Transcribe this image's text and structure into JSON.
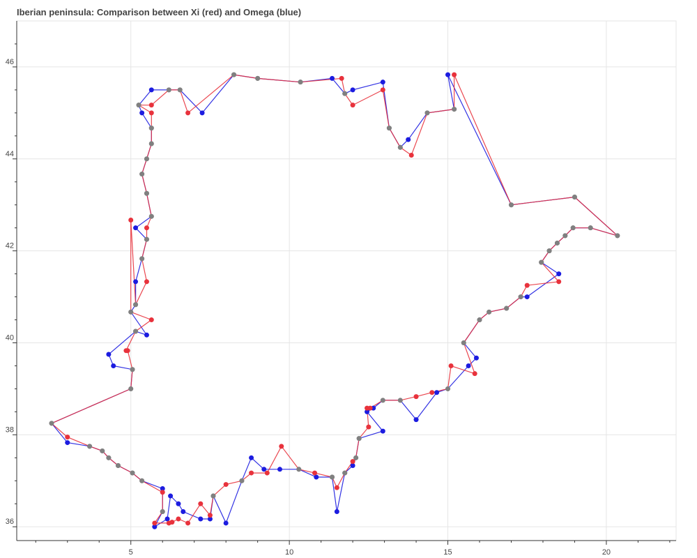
{
  "chart_data": {
    "type": "line",
    "title": "Iberian peninsula: Comparison between Xi (red) and Omega (blue)",
    "xlabel": "",
    "ylabel": "",
    "xlim": [
      1.4,
      22.2
    ],
    "ylim": [
      35.7,
      47.0
    ],
    "grid": true,
    "x_ticks": [
      5,
      10,
      15,
      20
    ],
    "y_ticks": [
      36,
      38,
      40,
      42,
      44,
      46
    ],
    "series": [
      {
        "color": "#e8323c",
        "points": [
          [
            2.5,
            38.25
          ],
          [
            3.0,
            37.95
          ],
          [
            3.7,
            37.75
          ],
          [
            4.1,
            37.65
          ],
          [
            4.3,
            37.5
          ],
          [
            4.6,
            37.33
          ],
          [
            5.05,
            37.17
          ],
          [
            5.35,
            37.0
          ],
          [
            6.0,
            36.75
          ],
          [
            6.0,
            36.33
          ],
          [
            5.75,
            36.08
          ],
          [
            6.2,
            36.08
          ],
          [
            6.3,
            36.1
          ],
          [
            6.5,
            36.17
          ],
          [
            6.8,
            36.08
          ],
          [
            7.2,
            36.5
          ],
          [
            7.5,
            36.25
          ],
          [
            7.6,
            36.67
          ],
          [
            8.0,
            36.92
          ],
          [
            8.5,
            37.0
          ],
          [
            8.8,
            37.17
          ],
          [
            9.3,
            37.17
          ],
          [
            9.75,
            37.75
          ],
          [
            10.3,
            37.25
          ],
          [
            10.8,
            37.17
          ],
          [
            11.35,
            37.08
          ],
          [
            11.5,
            36.85
          ],
          [
            11.75,
            37.17
          ],
          [
            12.0,
            37.42
          ],
          [
            12.1,
            37.5
          ],
          [
            12.2,
            37.92
          ],
          [
            12.5,
            38.17
          ],
          [
            12.45,
            38.58
          ],
          [
            12.55,
            38.58
          ],
          [
            12.95,
            38.75
          ],
          [
            13.5,
            38.75
          ],
          [
            14.0,
            38.83
          ],
          [
            14.5,
            38.92
          ],
          [
            15.0,
            39.0
          ],
          [
            15.1,
            39.5
          ],
          [
            15.85,
            39.33
          ],
          [
            15.5,
            40.0
          ],
          [
            16.0,
            40.5
          ],
          [
            16.3,
            40.67
          ],
          [
            16.85,
            40.75
          ],
          [
            17.3,
            41.0
          ],
          [
            17.5,
            41.25
          ],
          [
            18.5,
            41.33
          ],
          [
            17.95,
            41.75
          ],
          [
            18.2,
            42.0
          ],
          [
            18.45,
            42.17
          ],
          [
            18.7,
            42.33
          ],
          [
            18.95,
            42.5
          ],
          [
            19.5,
            42.5
          ],
          [
            20.35,
            42.33
          ],
          [
            19.0,
            43.17
          ],
          [
            17.0,
            43.0
          ],
          [
            15.2,
            45.83
          ],
          [
            15.2,
            45.08
          ],
          [
            14.35,
            45.0
          ],
          [
            13.85,
            44.08
          ],
          [
            13.5,
            44.25
          ],
          [
            13.15,
            44.67
          ],
          [
            12.95,
            45.5
          ],
          [
            12.0,
            45.17
          ],
          [
            11.75,
            45.42
          ],
          [
            11.65,
            45.75
          ],
          [
            10.35,
            45.67
          ],
          [
            9.0,
            45.75
          ],
          [
            8.25,
            45.83
          ],
          [
            6.8,
            45.0
          ],
          [
            6.55,
            45.5
          ],
          [
            6.2,
            45.5
          ],
          [
            5.65,
            45.17
          ],
          [
            5.25,
            45.17
          ],
          [
            5.65,
            45.0
          ],
          [
            5.65,
            44.67
          ],
          [
            5.65,
            44.33
          ],
          [
            5.5,
            44.0
          ],
          [
            5.35,
            43.67
          ],
          [
            5.5,
            43.25
          ],
          [
            5.65,
            42.75
          ],
          [
            5.5,
            42.5
          ],
          [
            5.5,
            42.25
          ],
          [
            5.35,
            41.83
          ],
          [
            5.5,
            41.33
          ],
          [
            5.15,
            40.83
          ],
          [
            5.0,
            42.67
          ],
          [
            5.0,
            40.67
          ],
          [
            5.65,
            40.5
          ],
          [
            5.15,
            40.25
          ],
          [
            4.85,
            39.83
          ],
          [
            4.9,
            39.83
          ],
          [
            5.05,
            39.42
          ],
          [
            5.0,
            39.0
          ],
          [
            2.5,
            38.25
          ]
        ]
      },
      {
        "color": "#1c1ce0",
        "points": [
          [
            2.5,
            38.25
          ],
          [
            3.0,
            37.83
          ],
          [
            3.7,
            37.75
          ],
          [
            4.1,
            37.65
          ],
          [
            4.3,
            37.5
          ],
          [
            4.6,
            37.33
          ],
          [
            5.05,
            37.17
          ],
          [
            5.35,
            37.0
          ],
          [
            6.0,
            36.83
          ],
          [
            6.0,
            36.33
          ],
          [
            5.75,
            36.0
          ],
          [
            6.15,
            36.17
          ],
          [
            6.25,
            36.67
          ],
          [
            6.5,
            36.5
          ],
          [
            6.65,
            36.33
          ],
          [
            7.2,
            36.17
          ],
          [
            7.5,
            36.17
          ],
          [
            7.6,
            36.67
          ],
          [
            8.0,
            36.08
          ],
          [
            8.5,
            37.0
          ],
          [
            8.8,
            37.5
          ],
          [
            9.2,
            37.25
          ],
          [
            9.7,
            37.25
          ],
          [
            10.3,
            37.25
          ],
          [
            10.85,
            37.08
          ],
          [
            11.35,
            37.08
          ],
          [
            11.5,
            36.33
          ],
          [
            11.75,
            37.17
          ],
          [
            12.0,
            37.33
          ],
          [
            12.1,
            37.5
          ],
          [
            12.2,
            37.92
          ],
          [
            12.95,
            38.08
          ],
          [
            12.45,
            38.5
          ],
          [
            12.65,
            38.58
          ],
          [
            12.95,
            38.75
          ],
          [
            13.5,
            38.75
          ],
          [
            14.0,
            38.33
          ],
          [
            14.65,
            38.92
          ],
          [
            15.0,
            39.0
          ],
          [
            15.65,
            39.5
          ],
          [
            15.9,
            39.67
          ],
          [
            15.5,
            40.0
          ],
          [
            16.0,
            40.5
          ],
          [
            16.3,
            40.67
          ],
          [
            16.85,
            40.75
          ],
          [
            17.3,
            41.0
          ],
          [
            17.5,
            41.0
          ],
          [
            18.5,
            41.5
          ],
          [
            17.95,
            41.75
          ],
          [
            18.2,
            42.0
          ],
          [
            18.45,
            42.17
          ],
          [
            18.7,
            42.33
          ],
          [
            18.95,
            42.5
          ],
          [
            19.5,
            42.5
          ],
          [
            20.35,
            42.33
          ],
          [
            19.0,
            43.17
          ],
          [
            17.0,
            43.0
          ],
          [
            15.0,
            45.83
          ],
          [
            15.2,
            45.08
          ],
          [
            14.35,
            45.0
          ],
          [
            13.75,
            44.42
          ],
          [
            13.5,
            44.25
          ],
          [
            13.15,
            44.67
          ],
          [
            12.95,
            45.67
          ],
          [
            12.0,
            45.5
          ],
          [
            11.75,
            45.42
          ],
          [
            11.35,
            45.75
          ],
          [
            10.35,
            45.67
          ],
          [
            9.0,
            45.75
          ],
          [
            8.25,
            45.83
          ],
          [
            7.25,
            45.0
          ],
          [
            6.55,
            45.5
          ],
          [
            6.2,
            45.5
          ],
          [
            5.65,
            45.5
          ],
          [
            5.25,
            45.17
          ],
          [
            5.35,
            45.0
          ],
          [
            5.65,
            44.67
          ],
          [
            5.65,
            44.33
          ],
          [
            5.5,
            44.0
          ],
          [
            5.35,
            43.67
          ],
          [
            5.5,
            43.25
          ],
          [
            5.65,
            42.75
          ],
          [
            5.15,
            42.5
          ],
          [
            5.5,
            42.25
          ],
          [
            5.35,
            41.83
          ],
          [
            5.15,
            41.33
          ],
          [
            5.15,
            40.83
          ],
          [
            5.0,
            40.67
          ],
          [
            5.5,
            40.17
          ],
          [
            5.15,
            40.25
          ],
          [
            4.3,
            39.75
          ],
          [
            4.45,
            39.5
          ],
          [
            5.05,
            39.42
          ],
          [
            5.0,
            39.0
          ],
          [
            2.5,
            38.25
          ]
        ]
      }
    ],
    "shared_color": "#808080"
  }
}
